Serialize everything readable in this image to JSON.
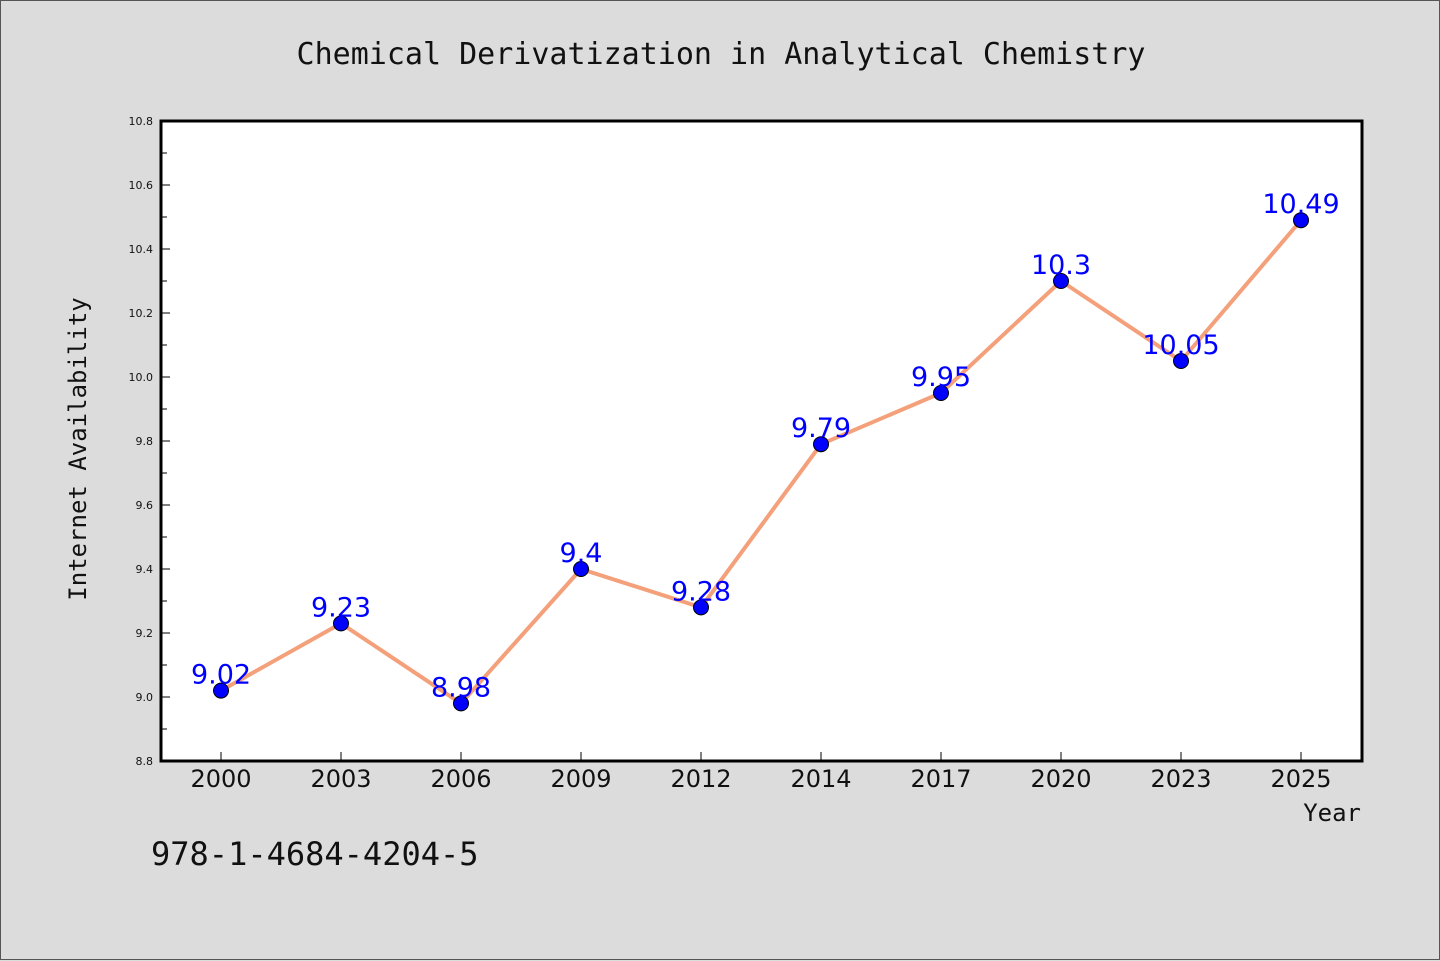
{
  "chart_data": {
    "type": "line",
    "title": "Chemical Derivatization in Analytical Chemistry",
    "xlabel": "Year",
    "ylabel": "Internet Availability",
    "categories": [
      "2000",
      "2003",
      "2006",
      "2009",
      "2012",
      "2014",
      "2017",
      "2020",
      "2023",
      "2025"
    ],
    "series": [
      {
        "values": [
          9.02,
          9.23,
          8.98,
          9.4,
          9.28,
          9.79,
          9.95,
          10.3,
          10.05,
          10.49
        ],
        "labels": [
          "9.02",
          "9.23",
          "8.98",
          "9.4",
          "9.28",
          "9.79",
          "9.95",
          "10.3",
          "10.05",
          "10.49"
        ]
      }
    ],
    "ylim": [
      8.8,
      10.8
    ],
    "yticks": [
      "8.8",
      "9.0",
      "9.2",
      "9.4",
      "9.6",
      "9.8",
      "10.0",
      "10.2",
      "10.4",
      "10.6",
      "10.8"
    ],
    "ytick_values": [
      8.8,
      9.0,
      9.2,
      9.4,
      9.6,
      9.8,
      10.0,
      10.2,
      10.4,
      10.6,
      10.8
    ],
    "grid": false,
    "line_color": "#f4a07a",
    "marker_color": "#0000ff",
    "label_color": "#0000ff"
  },
  "footer_text": "978-1-4684-4204-5"
}
